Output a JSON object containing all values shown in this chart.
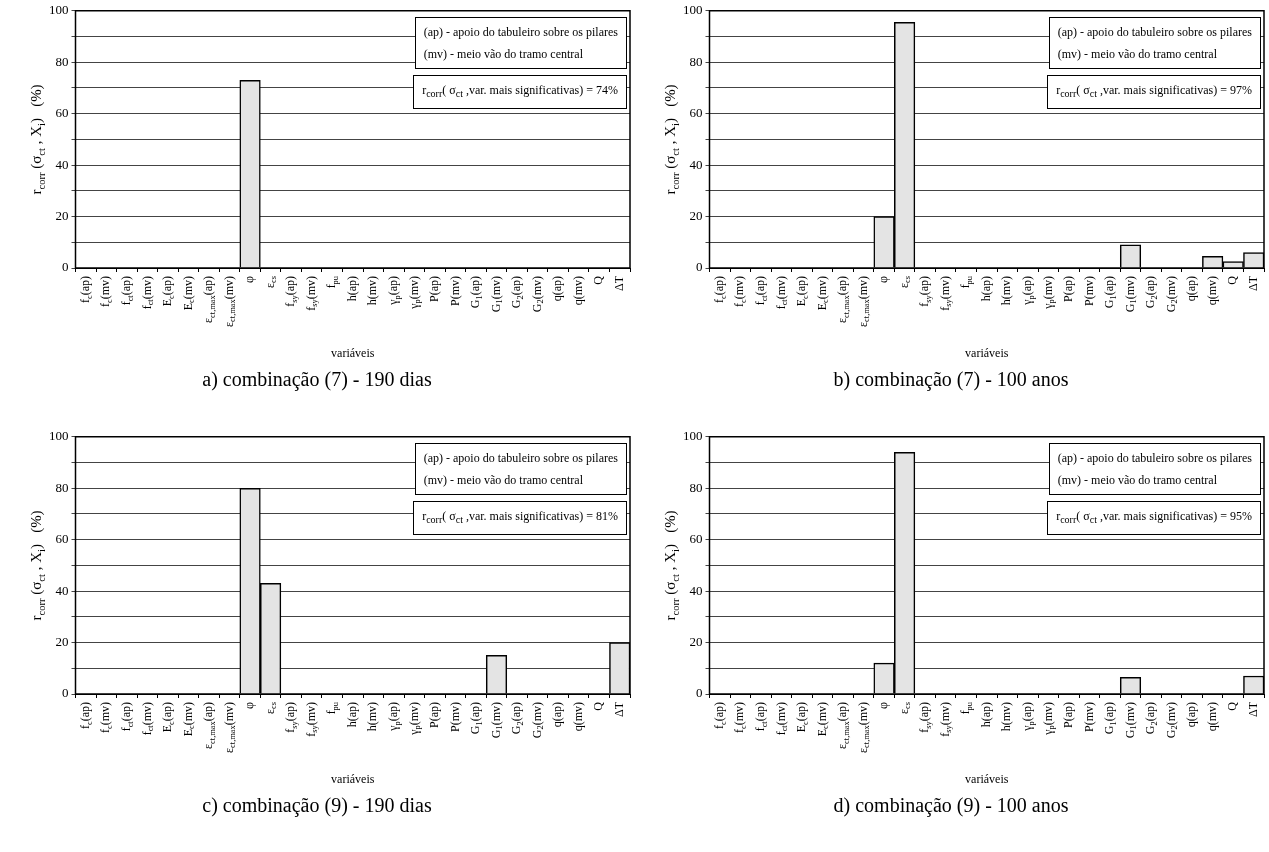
{
  "chart_data": [
    {
      "type": "bar",
      "title": "a) combinação (7) - 190 dias",
      "xlabel": "variáveis",
      "ylabel": "r$_{corr}$ (σ$_{ct}$ , X$_{i}$)   (%)",
      "categories": [
        "f$_{c}$(ap)",
        "f$_{c}$(mv)",
        "f$_{ct}$(ap)",
        "f$_{ct}$(mv)",
        "E$_{c}$(ap)",
        "E$_{c}$(mv)",
        "ε$_{ct,max}$(ap)",
        "ε$_{ct,max}$(mv)",
        "φ",
        "ε$_{cs}$",
        "f$_{sy}$(ap)",
        "f$_{sy}$(mv)",
        "f$_{pu}$",
        "h(ap)",
        "h(mv)",
        "γ$_{p}$(ap)",
        "γ$_{p}$(mv)",
        "P(ap)",
        "P(mv)",
        "G$_{1}$(ap)",
        "G$_{1}$(mv)",
        "G$_{2}$(ap)",
        "G$_{2}$(mv)",
        "q(ap)",
        "q(mv)",
        "Q",
        "ΔT"
      ],
      "values": [
        0,
        0,
        0,
        0,
        0,
        0,
        0,
        0,
        73,
        0,
        0,
        0,
        0,
        0,
        0,
        0,
        0,
        0,
        0,
        0,
        0,
        0,
        0,
        0,
        0,
        0,
        0
      ],
      "color": "#e4e4e4",
      "ylim": [
        0,
        100
      ],
      "yticks": [
        0,
        {
          "value": 10,
          "label": null
        },
        20,
        {
          "value": 30,
          "label": null
        },
        40,
        {
          "value": 50,
          "label": null
        },
        60,
        {
          "value": 70,
          "label": null
        },
        80,
        {
          "value": 90,
          "label": null
        },
        100
      ],
      "grid": "y",
      "annotations": [
        "(ap)  - apoio do tabuleiro sobre os pilares",
        "(mv) - meio vão do tramo central",
        "r$_{corr}$( σ$_{ct}$ ,var. mais significativas) = 74%"
      ]
    },
    {
      "type": "bar",
      "title": "b) combinação (7) - 100 anos",
      "xlabel": "variáveis",
      "ylabel": "r$_{corr}$ (σ$_{ct}$ , X$_{i}$)   (%)",
      "categories": [
        "f$_{c}$(ap)",
        "f$_{c}$(mv)",
        "f$_{ct}$(ap)",
        "f$_{ct}$(mv)",
        "E$_{c}$(ap)",
        "E$_{c}$(mv)",
        "ε$_{ct,max}$(ap)",
        "ε$_{ct,max}$(mv)",
        "φ",
        "ε$_{cs}$",
        "f$_{sy}$(ap)",
        "f$_{sy}$(mv)",
        "f$_{pu}$",
        "h(ap)",
        "h(mv)",
        "γ$_{p}$(ap)",
        "γ$_{p}$(mv)",
        "P(ap)",
        "P(mv)",
        "G$_{1}$(ap)",
        "G$_{1}$(mv)",
        "G$_{2}$(ap)",
        "G$_{2}$(mv)",
        "q(ap)",
        "q(mv)",
        "Q",
        "ΔT"
      ],
      "values": [
        0,
        0,
        0,
        0,
        0,
        0,
        0,
        0,
        20,
        95.5,
        0,
        0,
        0,
        0,
        0,
        0,
        0,
        0,
        0,
        0,
        9,
        0,
        0,
        0,
        4.5,
        2.5,
        6
      ],
      "color": "#e4e4e4",
      "ylim": [
        0,
        100
      ],
      "yticks": [
        0,
        {
          "value": 10,
          "label": null
        },
        20,
        {
          "value": 30,
          "label": null
        },
        40,
        {
          "value": 50,
          "label": null
        },
        60,
        {
          "value": 70,
          "label": null
        },
        80,
        {
          "value": 90,
          "label": null
        },
        100
      ],
      "grid": "y",
      "annotations": [
        "(ap)  - apoio do tabuleiro sobre os pilares",
        "(mv) - meio vão do tramo central",
        "r$_{corr}$( σ$_{ct}$ ,var. mais significativas) = 97%"
      ]
    },
    {
      "type": "bar",
      "title": "c) combinação (9) - 190 dias",
      "xlabel": "variáveis",
      "ylabel": "r$_{corr}$ (σ$_{ct}$ , X$_{i}$)   (%)",
      "categories": [
        "f$_{c}$(ap)",
        "f$_{c}$(mv)",
        "f$_{ct}$(ap)",
        "f$_{ct}$(mv)",
        "E$_{c}$(ap)",
        "E$_{c}$(mv)",
        "ε$_{ct,max}$(ap)",
        "ε$_{ct,max}$(mv)",
        "φ",
        "ε$_{cs}$",
        "f$_{sy}$(ap)",
        "f$_{sy}$(mv)",
        "f$_{pu}$",
        "h(ap)",
        "h(mv)",
        "γ$_{p}$(ap)",
        "γ$_{p}$(mv)",
        "P(ap)",
        "P(mv)",
        "G$_{1}$(ap)",
        "G$_{1}$(mv)",
        "G$_{2}$(ap)",
        "G$_{2}$(mv)",
        "q(ap)",
        "q(mv)",
        "Q",
        "ΔT"
      ],
      "values": [
        0,
        0,
        0,
        0,
        0,
        0,
        0,
        0,
        80,
        43,
        0,
        0,
        0,
        0,
        0,
        0,
        0,
        0,
        0,
        0,
        15,
        0,
        0,
        0,
        0,
        0,
        20
      ],
      "color": "#e4e4e4",
      "ylim": [
        0,
        100
      ],
      "yticks": [
        0,
        {
          "value": 10,
          "label": null
        },
        20,
        {
          "value": 30,
          "label": null
        },
        40,
        {
          "value": 50,
          "label": null
        },
        60,
        {
          "value": 70,
          "label": null
        },
        80,
        {
          "value": 90,
          "label": null
        },
        100
      ],
      "grid": "y",
      "annotations": [
        "(ap)  - apoio do tabuleiro sobre os pilares",
        "(mv) - meio vão do tramo central",
        "r$_{corr}$( σ$_{ct}$ ,var. mais significativas) = 81%"
      ]
    },
    {
      "type": "bar",
      "title": "d) combinação (9) - 100 anos",
      "xlabel": "variáveis",
      "ylabel": "r$_{corr}$ (σ$_{ct}$ , X$_{i}$)   (%)",
      "categories": [
        "f$_{c}$(ap)",
        "f$_{c}$(mv)",
        "f$_{ct}$(ap)",
        "f$_{ct}$(mv)",
        "E$_{c}$(ap)",
        "E$_{c}$(mv)",
        "ε$_{ct,max}$(ap)",
        "ε$_{ct,max}$(mv)",
        "φ",
        "ε$_{cs}$",
        "f$_{sy}$(ap)",
        "f$_{sy}$(mv)",
        "f$_{pu}$",
        "h(ap)",
        "h(mv)",
        "γ$_{p}$(ap)",
        "γ$_{p}$(mv)",
        "P(ap)",
        "P(mv)",
        "G$_{1}$(ap)",
        "G$_{1}$(mv)",
        "G$_{2}$(ap)",
        "G$_{2}$(mv)",
        "q(ap)",
        "q(mv)",
        "Q",
        "ΔT"
      ],
      "values": [
        0,
        0,
        0,
        0,
        0,
        0,
        0,
        0,
        12,
        94,
        0,
        0,
        0,
        0,
        0,
        0,
        0,
        0,
        0,
        0,
        6.5,
        0,
        0,
        0,
        0,
        0,
        7
      ],
      "color": "#e4e4e4",
      "ylim": [
        0,
        100
      ],
      "yticks": [
        0,
        {
          "value": 10,
          "label": null
        },
        20,
        {
          "value": 30,
          "label": null
        },
        40,
        {
          "value": 50,
          "label": null
        },
        60,
        {
          "value": 70,
          "label": null
        },
        80,
        {
          "value": 90,
          "label": null
        },
        100
      ],
      "grid": "y",
      "annotations": [
        "(ap)  - apoio do tabuleiro sobre os pilares",
        "(mv) - meio vão do tramo central",
        "r$_{corr}$( σ$_{ct}$ ,var. mais significativas) = 95%"
      ]
    }
  ]
}
